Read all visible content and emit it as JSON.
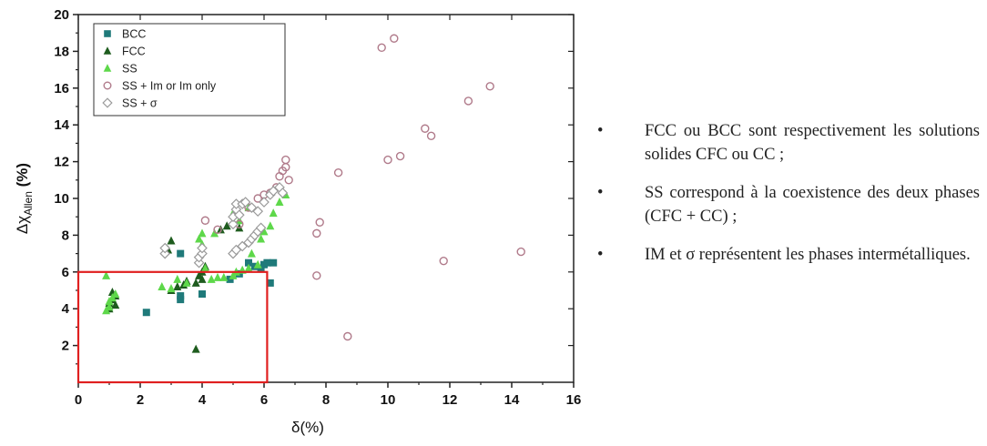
{
  "chart_data": {
    "type": "scatter",
    "title": "",
    "xlabel": "δ(%)",
    "ylabel_main": "Δχ",
    "ylabel_sub": "Allen",
    "ylabel_unit": "(%)",
    "xlim": [
      0,
      16
    ],
    "ylim": [
      0,
      20
    ],
    "xticks": [
      "0",
      "2",
      "4",
      "6",
      "8",
      "10",
      "12",
      "14",
      "16"
    ],
    "yticks": [
      "2",
      "4",
      "6",
      "8",
      "10",
      "12",
      "14",
      "16",
      "18",
      "20"
    ],
    "legend_position": "top-left",
    "highlight_box": {
      "x": [
        0,
        6.1
      ],
      "y": [
        0,
        6
      ],
      "color": "#e02020"
    },
    "series": [
      {
        "name": "BCC",
        "marker": "square",
        "color": "#1f7a7a",
        "points": [
          [
            2.2,
            3.8
          ],
          [
            3.3,
            4.5
          ],
          [
            3.3,
            4.7
          ],
          [
            3.3,
            7.0
          ],
          [
            4.0,
            4.8
          ],
          [
            4.9,
            5.6
          ],
          [
            5.2,
            5.9
          ],
          [
            5.5,
            6.5
          ],
          [
            5.7,
            6.3
          ],
          [
            5.9,
            6.2
          ],
          [
            6.0,
            6.4
          ],
          [
            6.1,
            6.5
          ],
          [
            6.2,
            5.4
          ],
          [
            6.3,
            6.5
          ]
        ]
      },
      {
        "name": "FCC",
        "marker": "triangle",
        "color": "#1e5c1e",
        "points": [
          [
            1.0,
            4.0
          ],
          [
            1.0,
            4.3
          ],
          [
            1.1,
            4.5
          ],
          [
            1.2,
            4.7
          ],
          [
            1.2,
            4.2
          ],
          [
            1.1,
            4.9
          ],
          [
            2.9,
            7.2
          ],
          [
            3.0,
            7.7
          ],
          [
            3.0,
            5.0
          ],
          [
            3.2,
            5.2
          ],
          [
            3.4,
            5.3
          ],
          [
            3.5,
            5.5
          ],
          [
            3.8,
            5.4
          ],
          [
            3.9,
            5.8
          ],
          [
            4.0,
            5.6
          ],
          [
            4.0,
            6.0
          ],
          [
            3.8,
            1.8
          ],
          [
            4.1,
            6.3
          ],
          [
            4.6,
            8.3
          ],
          [
            4.8,
            8.5
          ],
          [
            5.2,
            8.4
          ]
        ]
      },
      {
        "name": "SS",
        "marker": "triangle",
        "color": "#5ed84a",
        "points": [
          [
            0.9,
            3.9
          ],
          [
            1.0,
            4.1
          ],
          [
            1.0,
            4.4
          ],
          [
            1.1,
            4.6
          ],
          [
            0.9,
            5.8
          ],
          [
            1.2,
            4.8
          ],
          [
            2.7,
            5.2
          ],
          [
            3.0,
            5.1
          ],
          [
            3.2,
            5.6
          ],
          [
            3.5,
            5.4
          ],
          [
            3.9,
            7.8
          ],
          [
            4.0,
            8.1
          ],
          [
            4.0,
            7.5
          ],
          [
            4.1,
            6.2
          ],
          [
            4.3,
            5.6
          ],
          [
            4.5,
            5.7
          ],
          [
            4.7,
            5.7
          ],
          [
            5.0,
            5.8
          ],
          [
            5.1,
            6.0
          ],
          [
            5.3,
            6.1
          ],
          [
            5.5,
            6.2
          ],
          [
            5.8,
            6.4
          ],
          [
            5.9,
            7.8
          ],
          [
            6.0,
            8.2
          ],
          [
            6.2,
            8.5
          ],
          [
            6.3,
            9.2
          ],
          [
            6.5,
            9.8
          ],
          [
            6.7,
            10.2
          ],
          [
            5.5,
            9.5
          ],
          [
            5.0,
            9.2
          ],
          [
            4.4,
            8.1
          ],
          [
            5.2,
            8.8
          ],
          [
            5.6,
            7.0
          ]
        ]
      },
      {
        "name": "SS + Im or Im only",
        "marker": "circle",
        "color": "#b07a8a",
        "points": [
          [
            4.1,
            8.8
          ],
          [
            4.5,
            8.3
          ],
          [
            5.2,
            8.6
          ],
          [
            5.5,
            9.5
          ],
          [
            5.8,
            10.0
          ],
          [
            6.0,
            10.2
          ],
          [
            6.2,
            10.3
          ],
          [
            6.4,
            10.6
          ],
          [
            6.5,
            11.2
          ],
          [
            6.6,
            11.5
          ],
          [
            6.7,
            11.7
          ],
          [
            6.7,
            12.1
          ],
          [
            6.8,
            11.0
          ],
          [
            7.7,
            8.1
          ],
          [
            7.8,
            8.7
          ],
          [
            7.7,
            5.8
          ],
          [
            8.4,
            11.4
          ],
          [
            8.7,
            2.5
          ],
          [
            9.8,
            18.2
          ],
          [
            10.2,
            18.7
          ],
          [
            10.0,
            12.1
          ],
          [
            10.4,
            12.3
          ],
          [
            11.2,
            13.8
          ],
          [
            11.4,
            13.4
          ],
          [
            11.8,
            6.6
          ],
          [
            12.6,
            15.3
          ],
          [
            13.3,
            16.1
          ],
          [
            14.3,
            7.1
          ]
        ]
      },
      {
        "name": "SS + σ",
        "marker": "diamond",
        "color": "#9a9a9a",
        "points": [
          [
            2.8,
            7.0
          ],
          [
            2.8,
            7.3
          ],
          [
            3.9,
            6.5
          ],
          [
            3.9,
            6.8
          ],
          [
            4.0,
            7.0
          ],
          [
            4.0,
            7.3
          ],
          [
            5.0,
            7.0
          ],
          [
            5.1,
            7.2
          ],
          [
            5.3,
            7.4
          ],
          [
            5.5,
            7.6
          ],
          [
            5.6,
            7.8
          ],
          [
            5.7,
            8.0
          ],
          [
            5.8,
            8.2
          ],
          [
            5.9,
            8.4
          ],
          [
            5.0,
            8.6
          ],
          [
            5.0,
            9.0
          ],
          [
            5.1,
            9.4
          ],
          [
            5.1,
            9.7
          ],
          [
            5.3,
            9.7
          ],
          [
            5.4,
            9.8
          ],
          [
            5.6,
            9.5
          ],
          [
            5.8,
            9.3
          ],
          [
            6.0,
            9.8
          ],
          [
            6.2,
            10.2
          ],
          [
            6.3,
            10.4
          ],
          [
            6.5,
            10.6
          ],
          [
            6.6,
            10.3
          ],
          [
            5.2,
            9.1
          ]
        ]
      }
    ]
  },
  "notes": [
    {
      "bullet": "•",
      "text": "FCC ou BCC sont respectivement les solutions solides CFC ou CC ;"
    },
    {
      "bullet": "•",
      "text": "SS correspond à la coexistence des deux phases (CFC + CC) ;"
    },
    {
      "bullet": "•",
      "text": "IM et σ représentent les phases intermétalliques."
    }
  ]
}
